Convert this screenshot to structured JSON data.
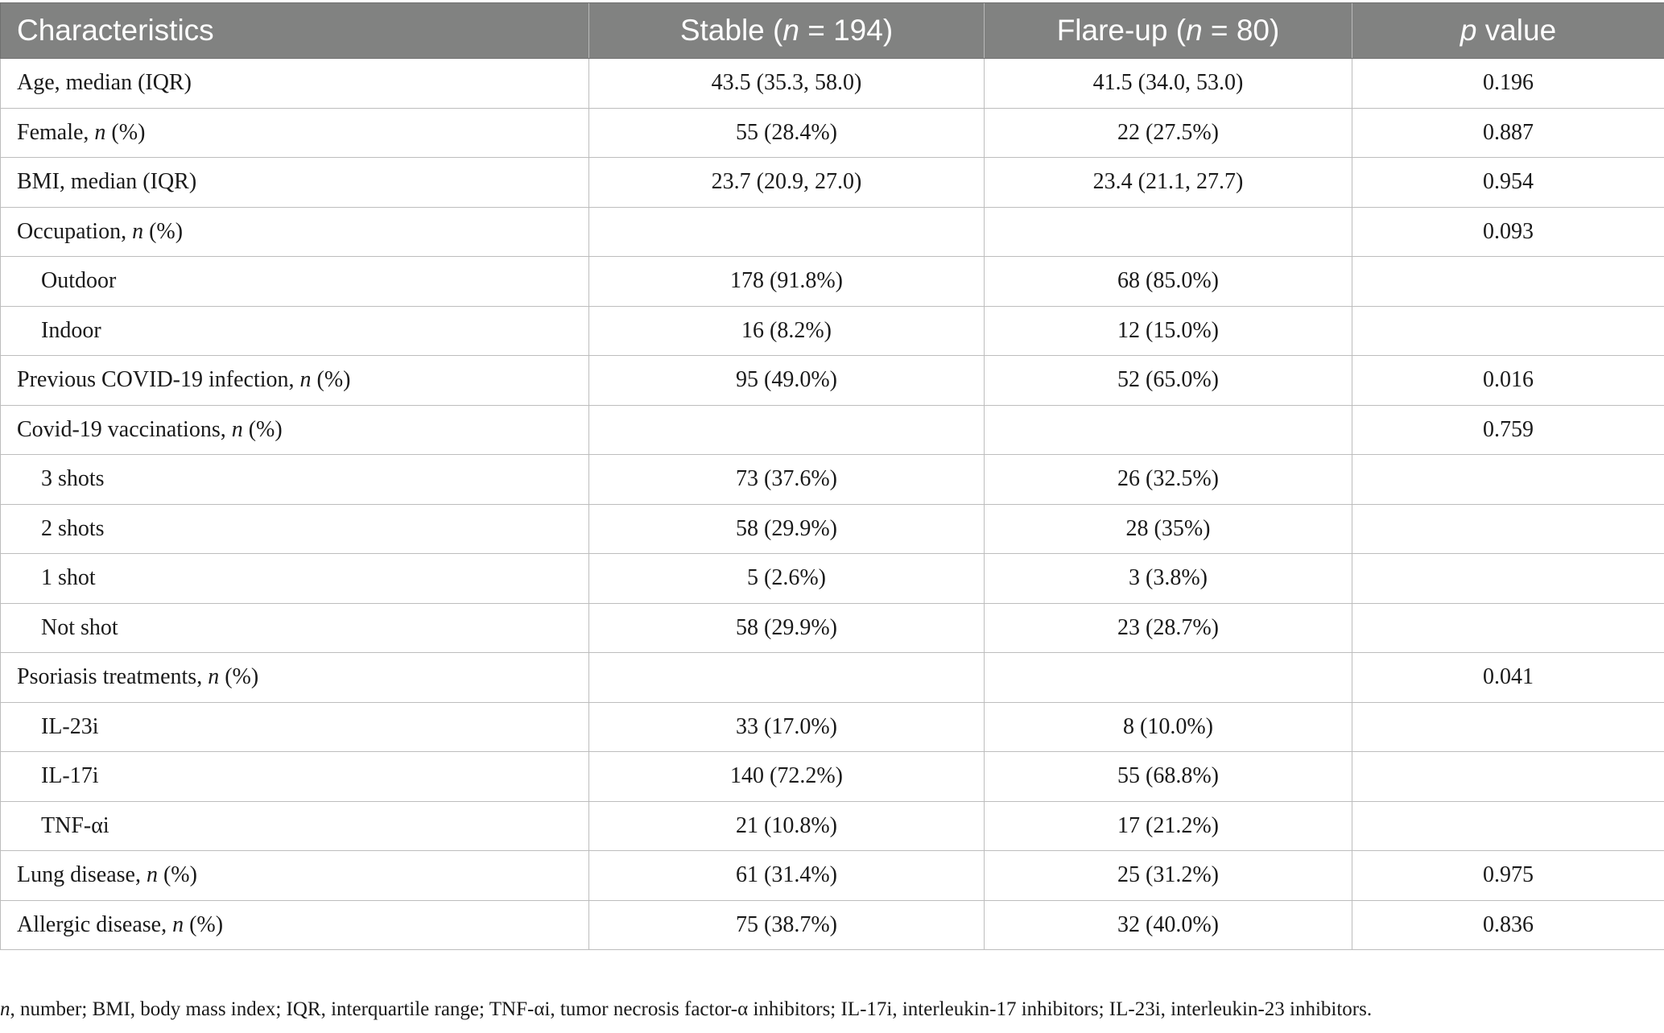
{
  "table": {
    "headers": [
      {
        "text": "Characteristics",
        "italic_n": false
      },
      {
        "prefix": "Stable (",
        "n": "n",
        "suffix": " = 194)"
      },
      {
        "prefix": "Flare-up (",
        "n": "n",
        "suffix": " = 80)"
      },
      {
        "p": "p",
        "suffix": " value"
      }
    ],
    "rows": [
      {
        "label": "Age, median (IQR)",
        "indent": false,
        "stable": "43.5 (35.3, 58.0)",
        "flare": "41.5 (34.0, 53.0)",
        "p": "0.196"
      },
      {
        "label_pre": "Female, ",
        "label_n": "n",
        "label_post": " (%)",
        "indent": false,
        "stable": "55 (28.4%)",
        "flare": "22 (27.5%)",
        "p": "0.887"
      },
      {
        "label": "BMI, median (IQR)",
        "indent": false,
        "stable": "23.7 (20.9, 27.0)",
        "flare": "23.4 (21.1, 27.7)",
        "p": "0.954"
      },
      {
        "label_pre": "Occupation, ",
        "label_n": "n",
        "label_post": " (%)",
        "indent": false,
        "stable": "",
        "flare": "",
        "p": "0.093"
      },
      {
        "label": "Outdoor",
        "indent": true,
        "stable": "178 (91.8%)",
        "flare": "68 (85.0%)",
        "p": ""
      },
      {
        "label": "Indoor",
        "indent": true,
        "stable": "16 (8.2%)",
        "flare": "12 (15.0%)",
        "p": ""
      },
      {
        "label_pre": "Previous COVID-19 infection, ",
        "label_n": "n",
        "label_post": " (%)",
        "indent": false,
        "stable": "95 (49.0%)",
        "flare": "52 (65.0%)",
        "p": "0.016"
      },
      {
        "label_pre": "Covid-19 vaccinations, ",
        "label_n": "n",
        "label_post": " (%)",
        "indent": false,
        "stable": "",
        "flare": "",
        "p": "0.759"
      },
      {
        "label": "3 shots",
        "indent": true,
        "stable": "73 (37.6%)",
        "flare": "26 (32.5%)",
        "p": ""
      },
      {
        "label": "2 shots",
        "indent": true,
        "stable": "58 (29.9%)",
        "flare": "28 (35%)",
        "p": ""
      },
      {
        "label": "1 shot",
        "indent": true,
        "stable": "5 (2.6%)",
        "flare": "3 (3.8%)",
        "p": ""
      },
      {
        "label": "Not shot",
        "indent": true,
        "stable": "58 (29.9%)",
        "flare": "23 (28.7%)",
        "p": ""
      },
      {
        "label_pre": "Psoriasis treatments, ",
        "label_n": "n",
        "label_post": " (%)",
        "indent": false,
        "stable": "",
        "flare": "",
        "p": "0.041"
      },
      {
        "label": "IL-23i",
        "indent": true,
        "stable": "33 (17.0%)",
        "flare": "8 (10.0%)",
        "p": ""
      },
      {
        "label": "IL-17i",
        "indent": true,
        "stable": "140 (72.2%)",
        "flare": "55 (68.8%)",
        "p": ""
      },
      {
        "label": "TNF-αi",
        "indent": true,
        "stable": "21 (10.8%)",
        "flare": "17 (21.2%)",
        "p": ""
      },
      {
        "label_pre": "Lung disease, ",
        "label_n": "n",
        "label_post": " (%)",
        "indent": false,
        "stable": "61 (31.4%)",
        "flare": "25 (31.2%)",
        "p": "0.975"
      },
      {
        "label_pre": "Allergic disease, ",
        "label_n": "n",
        "label_post": " (%)",
        "indent": false,
        "stable": "75 (38.7%)",
        "flare": "32 (40.0%)",
        "p": "0.836"
      }
    ]
  },
  "footnote": {
    "n": "n",
    "text": ", number; BMI, body mass index; IQR, interquartile range; TNF-αi, tumor necrosis factor-α inhibitors; IL-17i, interleukin-17 inhibitors; IL-23i, interleukin-23 inhibitors."
  }
}
